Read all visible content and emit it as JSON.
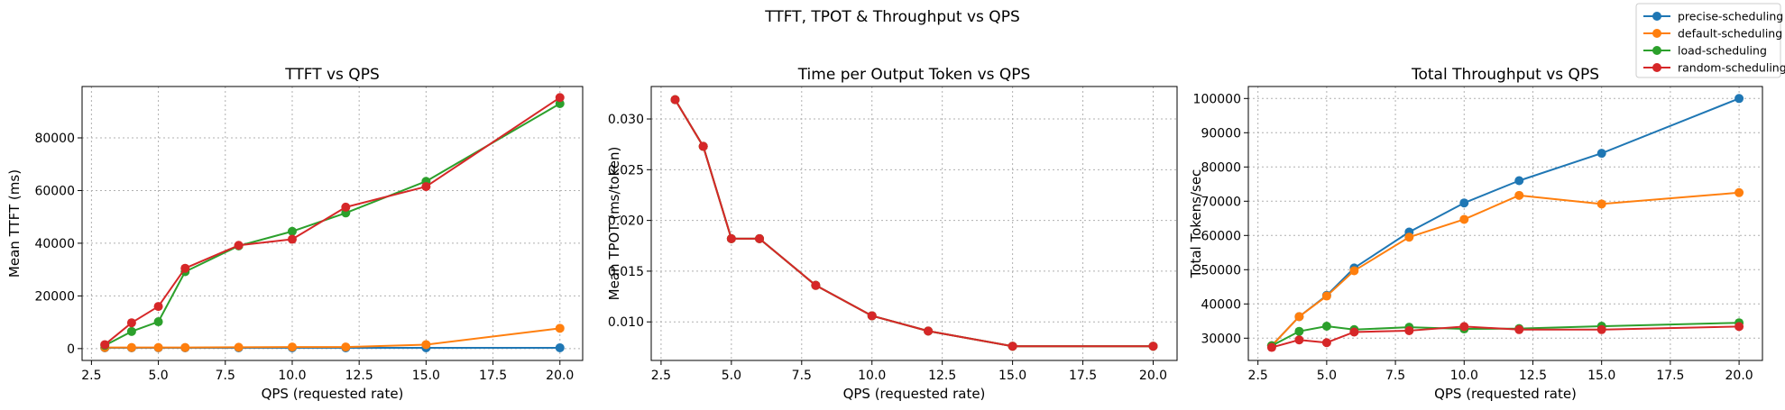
{
  "figure": {
    "suptitle": "TTFT, TPOT & Throughput vs QPS"
  },
  "legend": {
    "placement": "top-right",
    "entries": [
      "precise-scheduling",
      "default-scheduling",
      "load-scheduling",
      "random-scheduling"
    ]
  },
  "colors": {
    "precise-scheduling": "#1f77b4",
    "default-scheduling": "#ff7f0e",
    "load-scheduling": "#2ca02c",
    "random-scheduling": "#d62728"
  },
  "chart_data": [
    {
      "type": "line",
      "title": "TTFT vs QPS",
      "xlabel": "QPS (requested rate)",
      "ylabel": "Mean TTFT (ms)",
      "xlim": [
        2.15,
        20.85
      ],
      "ylim": [
        -4500,
        99500
      ],
      "xticks": [
        2.5,
        5.0,
        7.5,
        10.0,
        12.5,
        15.0,
        17.5,
        20.0
      ],
      "xtick_labels": [
        "2.5",
        "5.0",
        "7.5",
        "10.0",
        "12.5",
        "15.0",
        "17.5",
        "20.0"
      ],
      "yticks": [
        0,
        20000,
        40000,
        60000,
        80000
      ],
      "ytick_labels": [
        "0",
        "20000",
        "40000",
        "60000",
        "80000"
      ],
      "grid": true,
      "x": [
        3,
        4,
        5,
        6,
        8,
        10,
        12,
        15,
        20
      ],
      "series": [
        {
          "name": "precise-scheduling",
          "values": [
            300,
            300,
            300,
            300,
            300,
            300,
            300,
            300,
            300
          ]
        },
        {
          "name": "default-scheduling",
          "values": [
            400,
            400,
            400,
            400,
            500,
            600,
            600,
            1500,
            7700
          ]
        },
        {
          "name": "load-scheduling",
          "values": [
            1200,
            6500,
            10200,
            29200,
            39000,
            44500,
            51500,
            63500,
            93000
          ]
        },
        {
          "name": "random-scheduling",
          "values": [
            1500,
            9800,
            16000,
            30500,
            39200,
            41500,
            53700,
            61500,
            95300
          ]
        }
      ]
    },
    {
      "type": "line",
      "title": "Time per Output Token vs QPS",
      "xlabel": "QPS (requested rate)",
      "ylabel": "Mean TPOT (ms/token)",
      "xlim": [
        2.15,
        20.85
      ],
      "ylim": [
        0.0062,
        0.0332
      ],
      "xticks": [
        2.5,
        5.0,
        7.5,
        10.0,
        12.5,
        15.0,
        17.5,
        20.0
      ],
      "xtick_labels": [
        "2.5",
        "5.0",
        "7.5",
        "10.0",
        "12.5",
        "15.0",
        "17.5",
        "20.0"
      ],
      "yticks": [
        0.01,
        0.015,
        0.02,
        0.025,
        0.03
      ],
      "ytick_labels": [
        "0.010",
        "0.015",
        "0.020",
        "0.025",
        "0.030"
      ],
      "grid": true,
      "x": [
        3,
        4,
        5,
        6,
        8,
        10,
        12,
        15,
        20
      ],
      "series": [
        {
          "name": "precise-scheduling",
          "values": [
            0.0319,
            0.0273,
            0.0182,
            0.0182,
            0.0136,
            0.0106,
            0.0091,
            0.0076,
            0.0076
          ]
        },
        {
          "name": "default-scheduling",
          "values": [
            0.0319,
            0.0273,
            0.0182,
            0.0182,
            0.0136,
            0.0106,
            0.0091,
            0.0076,
            0.0076
          ]
        },
        {
          "name": "load-scheduling",
          "values": [
            0.0319,
            0.0273,
            0.0182,
            0.0182,
            0.0136,
            0.0106,
            0.0091,
            0.0076,
            0.0076
          ]
        },
        {
          "name": "random-scheduling",
          "values": [
            0.0319,
            0.0273,
            0.0182,
            0.0182,
            0.0136,
            0.0106,
            0.0091,
            0.0076,
            0.0076
          ]
        }
      ]
    },
    {
      "type": "line",
      "title": "Total Throughput vs QPS",
      "xlabel": "QPS (requested rate)",
      "ylabel": "Total Tokens/sec",
      "xlim": [
        2.15,
        20.85
      ],
      "ylim": [
        23500,
        103500
      ],
      "xticks": [
        2.5,
        5.0,
        7.5,
        10.0,
        12.5,
        15.0,
        17.5,
        20.0
      ],
      "xtick_labels": [
        "2.5",
        "5.0",
        "7.5",
        "10.0",
        "12.5",
        "15.0",
        "17.5",
        "20.0"
      ],
      "yticks": [
        30000,
        40000,
        50000,
        60000,
        70000,
        80000,
        90000,
        100000
      ],
      "ytick_labels": [
        "30000",
        "40000",
        "50000",
        "60000",
        "70000",
        "80000",
        "90000",
        "100000"
      ],
      "grid": true,
      "x": [
        3,
        4,
        5,
        6,
        8,
        10,
        12,
        15,
        20
      ],
      "series": [
        {
          "name": "precise-scheduling",
          "values": [
            27800,
            36300,
            42500,
            50500,
            61000,
            69500,
            76000,
            84000,
            100000
          ]
        },
        {
          "name": "default-scheduling",
          "values": [
            27800,
            36300,
            42300,
            49700,
            59500,
            64700,
            71700,
            69200,
            72500
          ]
        },
        {
          "name": "load-scheduling",
          "values": [
            27800,
            32000,
            33500,
            32500,
            33200,
            32700,
            32800,
            33500,
            34500
          ]
        },
        {
          "name": "random-scheduling",
          "values": [
            27300,
            29500,
            28700,
            31800,
            32200,
            33400,
            32500,
            32500,
            33400
          ]
        }
      ]
    }
  ]
}
